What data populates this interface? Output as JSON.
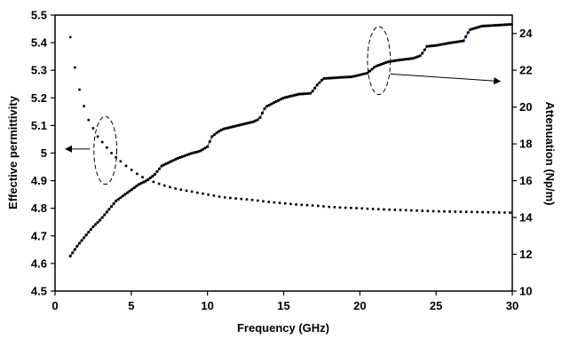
{
  "chart_data": {
    "type": "scatter",
    "title": "",
    "xlabel": "Frequency (GHz)",
    "ylabel_left": "Effective permittivity",
    "ylabel_right": "Attenuation (Np/m)",
    "xlim": [
      0,
      30
    ],
    "ylim_left": [
      4.5,
      5.5
    ],
    "ylim_right": [
      10,
      25
    ],
    "x_ticks": [
      "0",
      "5",
      "10",
      "15",
      "20",
      "25",
      "30"
    ],
    "y_left_ticks": [
      "4.5",
      "4.6",
      "4.7",
      "4.8",
      "4.9",
      "5",
      "5.1",
      "5.2",
      "5.3",
      "5.4",
      "5.5"
    ],
    "y_right_ticks": [
      "10",
      "12",
      "14",
      "16",
      "18",
      "20",
      "22",
      "24"
    ],
    "grid": false,
    "legend": "none",
    "series": [
      {
        "axis": "left",
        "style": "square-markers",
        "color": "#000000",
        "points": [
          [
            1.0,
            5.42
          ],
          [
            1.3,
            5.31
          ],
          [
            1.6,
            5.23
          ],
          [
            1.9,
            5.17
          ],
          [
            2.2,
            5.12
          ],
          [
            2.5,
            5.09
          ],
          [
            2.8,
            5.06
          ],
          [
            3.1,
            5.04
          ],
          [
            3.4,
            5.02
          ],
          [
            3.7,
            5.0
          ],
          [
            4.0,
            4.985
          ],
          [
            4.5,
            4.96
          ],
          [
            5.0,
            4.94
          ],
          [
            5.5,
            4.92
          ],
          [
            6.0,
            4.905
          ],
          [
            6.5,
            4.895
          ],
          [
            7.0,
            4.885
          ],
          [
            8.0,
            4.87
          ],
          [
            9.0,
            4.86
          ],
          [
            10.0,
            4.85
          ],
          [
            11.0,
            4.84
          ],
          [
            12.0,
            4.835
          ],
          [
            13.0,
            4.83
          ],
          [
            14.0,
            4.823
          ],
          [
            15.0,
            4.818
          ],
          [
            16.0,
            4.813
          ],
          [
            17.0,
            4.81
          ],
          [
            18.0,
            4.805
          ],
          [
            19.0,
            4.802
          ],
          [
            20.0,
            4.8
          ],
          [
            21.0,
            4.797
          ],
          [
            22.0,
            4.795
          ],
          [
            23.0,
            4.793
          ],
          [
            24.0,
            4.791
          ],
          [
            25.0,
            4.789
          ],
          [
            26.0,
            4.788
          ],
          [
            27.0,
            4.787
          ],
          [
            28.0,
            4.786
          ],
          [
            29.0,
            4.785
          ],
          [
            30.0,
            4.784
          ]
        ]
      },
      {
        "axis": "right",
        "style": "line-with-dots",
        "color": "#000000",
        "line_color": "#4a5aa8",
        "points": [
          [
            1.0,
            11.9
          ],
          [
            1.5,
            12.5
          ],
          [
            2.0,
            13.0
          ],
          [
            2.5,
            13.5
          ],
          [
            3.0,
            13.9
          ],
          [
            3.5,
            14.4
          ],
          [
            4.0,
            14.9
          ],
          [
            4.5,
            15.2
          ],
          [
            5.0,
            15.5
          ],
          [
            5.5,
            15.8
          ],
          [
            6.0,
            16.0
          ],
          [
            6.5,
            16.3
          ],
          [
            7.0,
            16.8
          ],
          [
            7.5,
            17.0
          ],
          [
            8.0,
            17.2
          ],
          [
            8.5,
            17.35
          ],
          [
            9.0,
            17.5
          ],
          [
            9.5,
            17.6
          ],
          [
            10.0,
            17.85
          ],
          [
            10.3,
            18.4
          ],
          [
            10.6,
            18.6
          ],
          [
            11.0,
            18.8
          ],
          [
            12.0,
            19.0
          ],
          [
            13.0,
            19.2
          ],
          [
            13.4,
            19.35
          ],
          [
            13.8,
            20.0
          ],
          [
            14.5,
            20.3
          ],
          [
            15.0,
            20.5
          ],
          [
            16.0,
            20.7
          ],
          [
            16.8,
            20.75
          ],
          [
            17.2,
            21.2
          ],
          [
            17.6,
            21.55
          ],
          [
            18.5,
            21.6
          ],
          [
            19.5,
            21.65
          ],
          [
            20.5,
            21.85
          ],
          [
            21.0,
            22.2
          ],
          [
            21.8,
            22.45
          ],
          [
            22.5,
            22.55
          ],
          [
            23.5,
            22.65
          ],
          [
            24.0,
            22.8
          ],
          [
            24.4,
            23.3
          ],
          [
            25.0,
            23.35
          ],
          [
            26.0,
            23.5
          ],
          [
            26.8,
            23.6
          ],
          [
            27.2,
            24.2
          ],
          [
            28.0,
            24.4
          ],
          [
            29.0,
            24.45
          ],
          [
            30.0,
            24.5
          ]
        ]
      }
    ],
    "annotations": [
      {
        "type": "ellipse",
        "cx": 3.3,
        "cy_left": 5.01,
        "rx_data": 0.75,
        "ry_left": 0.123
      },
      {
        "type": "ellipse",
        "cx": 21.25,
        "cy_left": 5.335,
        "rx_data": 0.75,
        "ry_left": 0.123
      },
      {
        "type": "arrow",
        "from": [
          2.3,
          5.015
        ],
        "to": [
          0.7,
          5.015
        ],
        "axis": "left"
      },
      {
        "type": "arrow",
        "from": [
          22.0,
          21.8
        ],
        "to": [
          29.2,
          21.4
        ],
        "axis": "right"
      }
    ]
  }
}
